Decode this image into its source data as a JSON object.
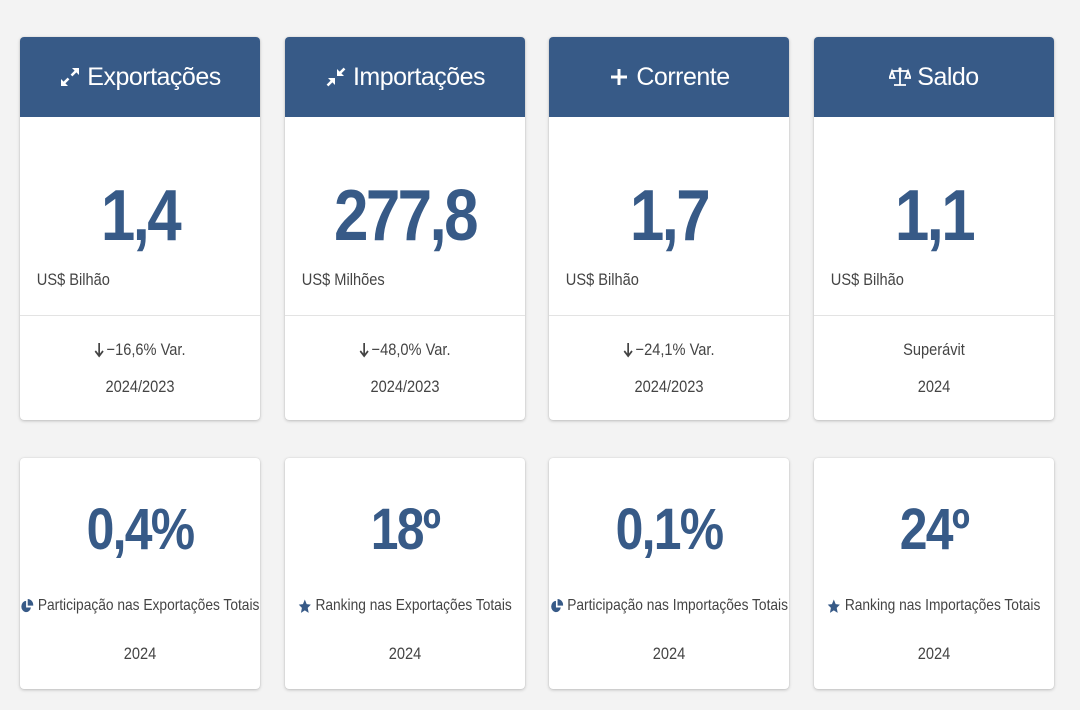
{
  "colors": {
    "header_bg": "#375a87",
    "value_text": "#375a87",
    "page_bg": "#f3f3f3"
  },
  "summary_cards": [
    {
      "title": "Exportações",
      "icon": "expand-arrows-icon",
      "value": "1,4",
      "unit": "US$ Bilhão",
      "variation": "−16,6% Var.",
      "trend": "down",
      "period": "2024/2023"
    },
    {
      "title": "Importações",
      "icon": "compress-arrows-icon",
      "value": "277,8",
      "unit": "US$ Milhões",
      "variation": "−48,0% Var.",
      "trend": "down",
      "period": "2024/2023"
    },
    {
      "title": "Corrente",
      "icon": "plus-icon",
      "value": "1,7",
      "unit": "US$ Bilhão",
      "variation": "−24,1% Var.",
      "trend": "down",
      "period": "2024/2023"
    },
    {
      "title": "Saldo",
      "icon": "balance-scale-icon",
      "value": "1,1",
      "unit": "US$ Bilhão",
      "variation": "Superávit",
      "trend": "none",
      "period": "2024"
    }
  ],
  "stat_cards": [
    {
      "value": "0,4%",
      "icon": "pie-chart-icon",
      "label": "Participação nas Exportações Totais",
      "year": "2024"
    },
    {
      "value": "18º",
      "icon": "star-icon",
      "label": "Ranking nas Exportações Totais",
      "year": "2024"
    },
    {
      "value": "0,1%",
      "icon": "pie-chart-icon",
      "label": "Participação nas Importações Totais",
      "year": "2024"
    },
    {
      "value": "24º",
      "icon": "star-icon",
      "label": "Ranking nas Importações Totais",
      "year": "2024"
    }
  ]
}
